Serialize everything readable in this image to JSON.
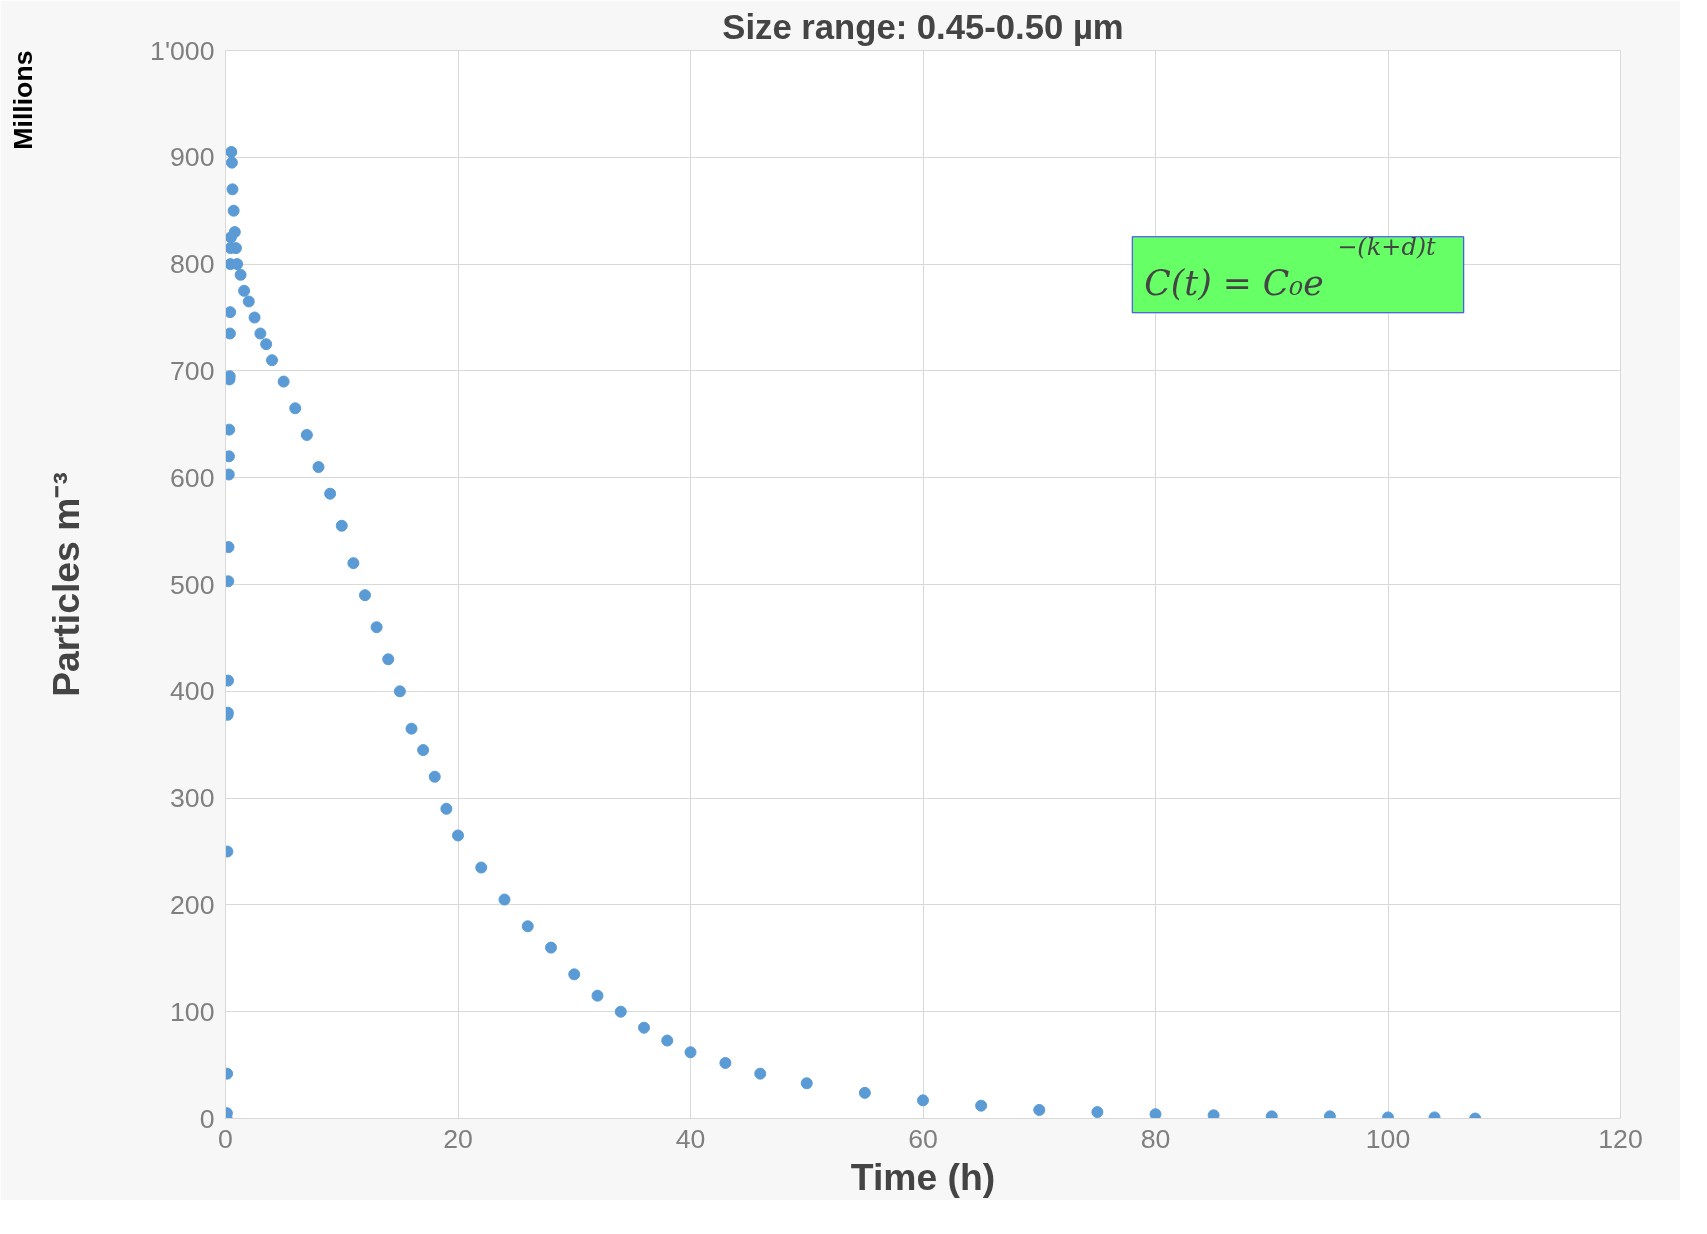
{
  "chart_data": {
    "type": "scatter",
    "title": "Size range: 0.45-0.50 µm",
    "xlabel": "Time (h)",
    "ylabel": "Particles m⁻³",
    "annotations": [
      "Millions",
      "C(t) = C₀e$^{−(k+d)t}$"
    ],
    "xlim": [
      0,
      120
    ],
    "xticks": [
      0,
      20,
      40,
      60,
      80,
      100,
      120
    ],
    "ylim": [
      0,
      1000
    ],
    "yticks": [
      0,
      100,
      200,
      300,
      400,
      500,
      600,
      700,
      800,
      900,
      {
        "value": 1000,
        "label": "1'000"
      }
    ],
    "grid": true,
    "marker": "circle",
    "series": [
      {
        "color": "#5b9bd5",
        "x": [
          0.1,
          0.12,
          0.14,
          0.16,
          0.18,
          0.2,
          0.22,
          0.24,
          0.26,
          0.28,
          0.3,
          0.32,
          0.34,
          0.36,
          0.38,
          0.4,
          0.42,
          0.44,
          0.46,
          0.5,
          0.55,
          0.6,
          0.7,
          0.8,
          0.9,
          1.0,
          1.3,
          1.6,
          2,
          2.5,
          3,
          3.5,
          4,
          5,
          6,
          7,
          8,
          9,
          10,
          11,
          12,
          13,
          14,
          15,
          16,
          17,
          18,
          19,
          20,
          22,
          24,
          26,
          28,
          30,
          32,
          34,
          36,
          38,
          40,
          43,
          46,
          50,
          55,
          60,
          65,
          70,
          75,
          80,
          85,
          90,
          95,
          100,
          104,
          107.5
        ],
        "values": [
          0,
          5,
          42,
          250,
          378,
          380,
          410,
          503,
          535,
          603,
          620,
          645,
          692,
          695,
          735,
          755,
          800,
          815,
          825,
          905,
          895,
          870,
          850,
          830,
          815,
          800,
          790,
          775,
          765,
          750,
          735,
          725,
          710,
          690,
          665,
          640,
          610,
          585,
          555,
          520,
          490,
          460,
          430,
          400,
          365,
          345,
          320,
          290,
          265,
          235,
          205,
          180,
          160,
          135,
          115,
          100,
          85,
          73,
          62,
          52,
          42,
          33,
          24,
          17,
          12,
          8,
          6,
          4,
          3,
          2,
          2,
          1,
          1,
          0
        ]
      }
    ]
  }
}
